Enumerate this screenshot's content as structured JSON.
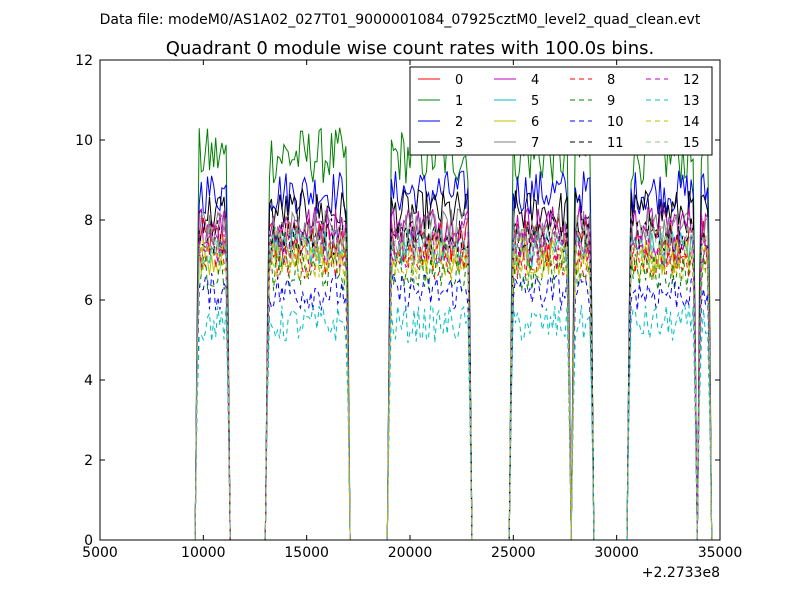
{
  "chart_data": {
    "type": "line",
    "suptitle": "Data file: modeM0/AS1A02_027T01_9000001084_07925cztM0_level2_quad_clean.evt",
    "title": "Quadrant 0 module wise count rates with 100.0s bins.",
    "xlabel": "",
    "ylabel": "",
    "xlim": [
      5000,
      35000
    ],
    "ylim": [
      0,
      12
    ],
    "x_offset_label": "+2.2733e8",
    "x_ticks": [
      5000,
      10000,
      15000,
      20000,
      25000,
      30000,
      35000
    ],
    "y_ticks": [
      0,
      2,
      4,
      6,
      8,
      10,
      12
    ],
    "bin_size_s": 100.0,
    "legend_location": "upper-right",
    "legend_columns": 4,
    "segments": [
      {
        "start": 9700,
        "end": 11200
      },
      {
        "start": 13100,
        "end": 17000
      },
      {
        "start": 19000,
        "end": 22900
      },
      {
        "start": 24900,
        "end": 27700
      },
      {
        "start": 27900,
        "end": 28800
      },
      {
        "start": 30600,
        "end": 33800
      },
      {
        "start": 34000,
        "end": 34500
      }
    ],
    "series": [
      {
        "name": "0",
        "color": "#ff0000",
        "dash": "solid",
        "mean": 7.5,
        "noise": 0.35
      },
      {
        "name": "1",
        "color": "#008000",
        "dash": "solid",
        "mean": 9.6,
        "noise": 0.45
      },
      {
        "name": "2",
        "color": "#0000ff",
        "dash": "solid",
        "mean": 8.7,
        "noise": 0.35
      },
      {
        "name": "3",
        "color": "#000000",
        "dash": "solid",
        "mean": 8.2,
        "noise": 0.35
      },
      {
        "name": "4",
        "color": "#bf00bf",
        "dash": "solid",
        "mean": 7.9,
        "noise": 0.3
      },
      {
        "name": "5",
        "color": "#00bfbf",
        "dash": "solid",
        "mean": 7.3,
        "noise": 0.3
      },
      {
        "name": "6",
        "color": "#bfbf00",
        "dash": "solid",
        "mean": 7.1,
        "noise": 0.3
      },
      {
        "name": "7",
        "color": "#808080",
        "dash": "solid",
        "mean": 7.8,
        "noise": 0.3
      },
      {
        "name": "8",
        "color": "#ff0000",
        "dash": "dashed",
        "mean": 7.0,
        "noise": 0.3
      },
      {
        "name": "9",
        "color": "#008000",
        "dash": "dashed",
        "mean": 6.7,
        "noise": 0.3
      },
      {
        "name": "10",
        "color": "#0000ff",
        "dash": "dashed",
        "mean": 6.2,
        "noise": 0.3
      },
      {
        "name": "11",
        "color": "#000000",
        "dash": "dashed",
        "mean": 7.6,
        "noise": 0.3
      },
      {
        "name": "12",
        "color": "#bf00bf",
        "dash": "dashed",
        "mean": 7.3,
        "noise": 0.3
      },
      {
        "name": "13",
        "color": "#00bfbf",
        "dash": "dashed",
        "mean": 5.4,
        "noise": 0.3
      },
      {
        "name": "14",
        "color": "#bfbf00",
        "dash": "dashed",
        "mean": 6.9,
        "noise": 0.3
      },
      {
        "name": "15",
        "color": "#8fbc8f",
        "dash": "dashed",
        "mean": 7.4,
        "noise": 0.3
      }
    ]
  }
}
